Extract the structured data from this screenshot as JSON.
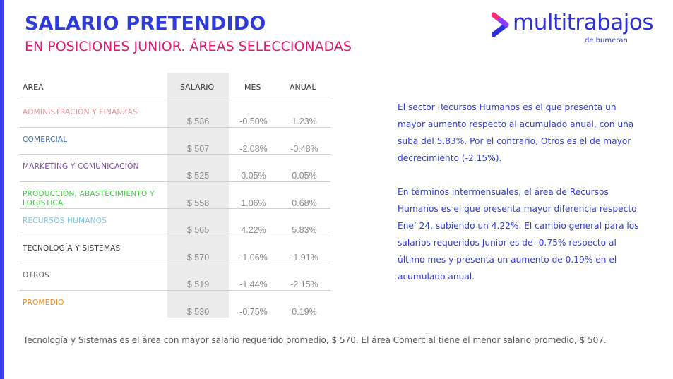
{
  "header": {
    "title": "SALARIO PRETENDIDO",
    "subtitle": "EN POSICIONES JUNIOR. ÁREAS SELECCIONADAS"
  },
  "logo": {
    "text": "multitrabajos",
    "sub": "de bumeran",
    "color": "#2a2fd6",
    "mark_colors": [
      "#ff2f6e",
      "#8b3bff",
      "#2a2fd6"
    ]
  },
  "table": {
    "columns": [
      "AREA",
      "SALARIO",
      "MES",
      "ANUAL"
    ],
    "rows": [
      {
        "area": "ADMINISTRACIÓN Y FINANZAS",
        "color": "#e39a9a",
        "salario": "$ 536",
        "mes": "-0.50%",
        "anual": "1.23%"
      },
      {
        "area": "COMERCIAL",
        "color": "#3c6fb8",
        "salario": "$ 507",
        "mes": "-2.08%",
        "anual": "-0.48%"
      },
      {
        "area": "MARKETING Y COMUNICACIÓN",
        "color": "#7a4ba3",
        "salario": "$ 525",
        "mes": "0.05%",
        "anual": "0.05%"
      },
      {
        "area": "PRODUCCIÓN, ABASTECIMIENTO Y LOGÍSTICA",
        "color": "#3ecf42",
        "salario": "$ 558",
        "mes": "1.06%",
        "anual": "0.68%"
      },
      {
        "area": "RECURSOS HUMANOS",
        "color": "#7dc7e6",
        "salario": "$ 565",
        "mes": "4.22%",
        "anual": "5.83%"
      },
      {
        "area": "TECNOLOGÍA Y SISTEMAS",
        "color": "#333333",
        "salario": "$ 570",
        "mes": "-1.06%",
        "anual": "-1.91%"
      },
      {
        "area": "OTROS",
        "color": "#666666",
        "salario": "$ 519",
        "mes": "-1.44%",
        "anual": "-2.15%"
      },
      {
        "area": "PROMEDIO",
        "color": "#f08a24",
        "salario": "$ 530",
        "mes": "-0.75%",
        "anual": "0.19%"
      }
    ]
  },
  "side": {
    "p1": "El sector Recursos Humanos es el que presenta un mayor aumento respecto al acumulado anual, con una suba del 5.83%. Por el contrario, Otros es el de mayor decrecimiento (-2.15%).",
    "p2": "En términos intermensuales, el área de Recursos Humanos es el que presenta mayor diferencia respecto Ene’ 24, subiendo un 4.22%. El cambio general para los salarios requeridos Junior es de -0.75% respecto al último mes y presenta un aumento de 0.19% en el acumulado anual."
  },
  "footer": {
    "note": "Tecnología y Sistemas es el área con mayor salario requerido promedio, $ 570. El área Comercial tiene el menor salario promedio, $ 507."
  }
}
